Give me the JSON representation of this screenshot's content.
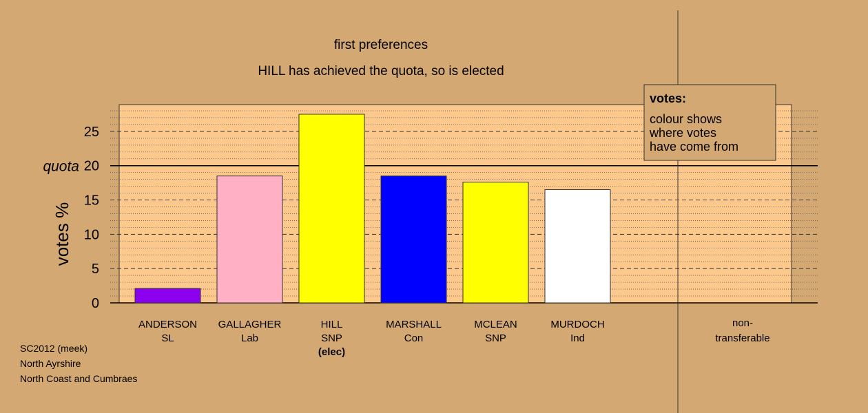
{
  "chart_data": {
    "type": "bar",
    "title": "first preferences",
    "subtitle": "HILL has achieved the quota, so is elected",
    "ylabel": "votes %",
    "ylim": [
      0,
      28.9
    ],
    "yticks": [
      0,
      5,
      10,
      15,
      20,
      25
    ],
    "quota": 20,
    "quota_label": "quota",
    "categories": [
      {
        "name": "ANDERSON",
        "party": "SL",
        "note": "",
        "value": 2.1,
        "color": "#8b00ee"
      },
      {
        "name": "GALLAGHER",
        "party": "Lab",
        "note": "",
        "value": 18.5,
        "color": "#ffb0c4"
      },
      {
        "name": "HILL",
        "party": "SNP",
        "note": "(elec)",
        "value": 27.5,
        "color": "#ffff00"
      },
      {
        "name": "MARSHALL",
        "party": "Con",
        "note": "",
        "value": 18.5,
        "color": "#0000ff"
      },
      {
        "name": "MCLEAN",
        "party": "SNP",
        "note": "",
        "value": 17.6,
        "color": "#ffff00"
      },
      {
        "name": "MURDOCH",
        "party": "Ind",
        "note": "",
        "value": 16.5,
        "color": "#ffffff"
      }
    ],
    "nontransferable": {
      "label_line1": "non-",
      "label_line2": "transferable",
      "value": 0
    },
    "legend": {
      "title": "votes:",
      "lines": [
        "colour shows",
        "where votes",
        "have come from"
      ],
      "position": "top-right"
    },
    "colors": {
      "background": "#d4a872",
      "plot_background": "#fcc88c"
    }
  },
  "footer": {
    "line1": "SC2012 (meek)",
    "line2": "North Ayrshire",
    "line3": "North Coast and Cumbraes"
  }
}
